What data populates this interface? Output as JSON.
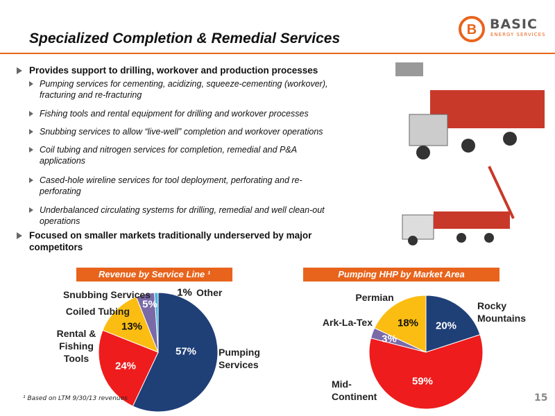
{
  "header": {
    "title": "Specialized Completion & Remedial Services",
    "logo_name": "BASIC",
    "logo_tagline": "ENERGY SERVICES"
  },
  "bullets": [
    {
      "text": "Provides support to drilling, workover and production processes",
      "sub": [
        "Pumping services for cementing, acidizing, squeeze-cementing (workover), fracturing and re-fracturing",
        "Fishing tools and rental equipment for drilling and workover processes",
        "Snubbing services to allow “live-well” completion and workover operations",
        "Coil tubing and nitrogen services for completion, remedial and P&A applications",
        "Cased-hole wireline services for tool deployment, perforating and re-perforating",
        "Underbalanced circulating systems for drilling, remedial and well clean-out operations"
      ]
    },
    {
      "text": "Focused on smaller markets traditionally underserved by major competitors",
      "sub": []
    }
  ],
  "chart_data": [
    {
      "type": "pie",
      "title": "Revenue by Service Line ¹",
      "categories": [
        "Pumping Services",
        "Rental & Fishing Tools",
        "Coiled Tubing",
        "Snubbing Services",
        "Other"
      ],
      "values": [
        57,
        24,
        13,
        5,
        1
      ],
      "value_labels": [
        "57%",
        "24%",
        "13%",
        "5%",
        "1%"
      ],
      "colors": [
        "#1f3f77",
        "#ee1c1c",
        "#fbbd12",
        "#7a6aa8",
        "#4fb3d9"
      ]
    },
    {
      "type": "pie",
      "title": "Pumping HHP by Market Area",
      "categories": [
        "Rocky Mountains",
        "Mid-Continent",
        "Ark-La-Tex",
        "Permian"
      ],
      "values": [
        20,
        59,
        3,
        18
      ],
      "value_labels": [
        "20%",
        "59%",
        "3%",
        "18%"
      ],
      "colors": [
        "#1f3f77",
        "#ee1c1c",
        "#7a6aa8",
        "#fbbd12"
      ]
    }
  ],
  "footnote": "¹ Based on LTM 9/30/13 revenues",
  "page_number": "15"
}
